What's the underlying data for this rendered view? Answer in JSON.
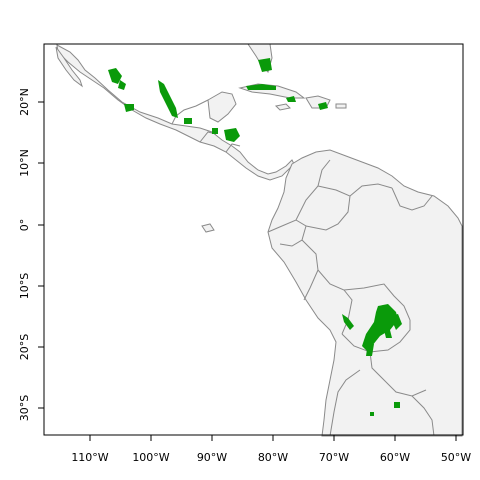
{
  "map": {
    "x_axis": {
      "ticks": [
        {
          "label": "110°W"
        },
        {
          "label": "100°W"
        },
        {
          "label": "90°W"
        },
        {
          "label": "80°W"
        },
        {
          "label": "70°W"
        },
        {
          "label": "60°W"
        },
        {
          "label": "50°W"
        }
      ]
    },
    "y_axis": {
      "ticks": [
        {
          "label": "20°N"
        },
        {
          "label": "10°N"
        },
        {
          "label": "0°"
        },
        {
          "label": "10°S"
        },
        {
          "label": "20°S"
        },
        {
          "label": "30°S"
        }
      ]
    },
    "colors": {
      "land": "#f2f2f2",
      "border": "#8a8a8a",
      "highlight": "#0a9a0a",
      "frame": "#000000"
    }
  }
}
